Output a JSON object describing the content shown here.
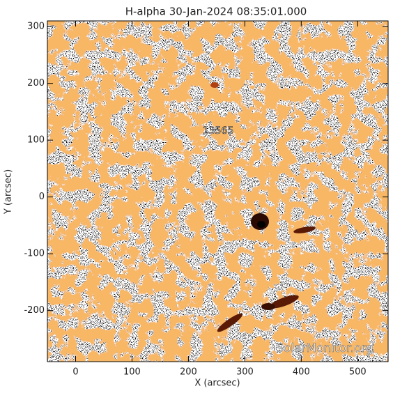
{
  "chart_data": {
    "type": "image",
    "title": "H-alpha 30-Jan-2024 08:35:01.000",
    "x_label": "X (arcsec)",
    "y_label": "Y (arcsec)",
    "xlim": [
      -50,
      554
    ],
    "ylim": [
      -290,
      310
    ],
    "xticks": [
      0,
      100,
      200,
      300,
      400,
      500
    ],
    "yticks": [
      -200,
      -100,
      0,
      100,
      200,
      300
    ],
    "annotations": [
      "13565"
    ],
    "watermark": "SolarMonitor.org"
  }
}
